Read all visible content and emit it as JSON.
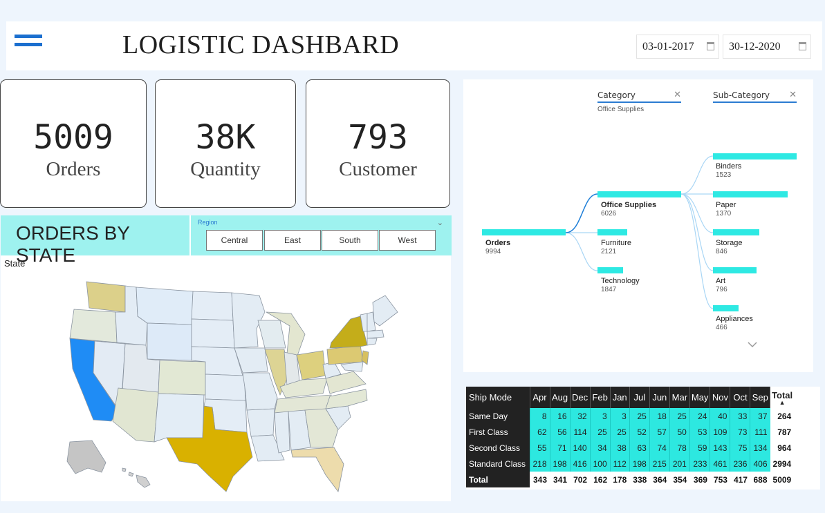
{
  "header": {
    "title": "LOGISTIC DASHBARD",
    "start_date": "03-01-2017",
    "end_date": "30-12-2020"
  },
  "kpis": [
    {
      "value": "5009",
      "label": "Orders"
    },
    {
      "value": "38K",
      "label": "Quantity"
    },
    {
      "value": "793",
      "label": "Customer"
    }
  ],
  "map_section": {
    "title": "ORDERS BY STATE",
    "slicer_label": "Region",
    "regions": [
      "Central",
      "East",
      "South",
      "West"
    ],
    "legend_field": "State"
  },
  "decomposition_tree": {
    "filters": [
      {
        "label": "Category",
        "value": "Office Supplies"
      },
      {
        "label": "Sub-Category",
        "value": ""
      }
    ],
    "bar_color": "#2ee9e3",
    "root": {
      "name": "Orders",
      "value": "9994"
    },
    "categories": [
      {
        "name": "Office Supplies",
        "value": "6026",
        "selected": true
      },
      {
        "name": "Furniture",
        "value": "2121",
        "selected": false
      },
      {
        "name": "Technology",
        "value": "1847",
        "selected": false
      }
    ],
    "subcategories": [
      {
        "name": "Binders",
        "value": "1523"
      },
      {
        "name": "Paper",
        "value": "1370"
      },
      {
        "name": "Storage",
        "value": "846"
      },
      {
        "name": "Art",
        "value": "796"
      },
      {
        "name": "Appliances",
        "value": "466"
      }
    ]
  },
  "matrix": {
    "row_header": "Ship Mode",
    "columns": [
      "Apr",
      "Aug",
      "Dec",
      "Feb",
      "Jan",
      "Jul",
      "Jun",
      "Mar",
      "May",
      "Nov",
      "Oct",
      "Sep"
    ],
    "total_label": "Total",
    "rows": [
      {
        "name": "Same Day",
        "values": [
          "8",
          "16",
          "32",
          "3",
          "3",
          "25",
          "18",
          "25",
          "24",
          "40",
          "33",
          "37"
        ],
        "total": "264"
      },
      {
        "name": "First Class",
        "values": [
          "62",
          "56",
          "114",
          "25",
          "25",
          "52",
          "57",
          "50",
          "53",
          "109",
          "73",
          "111"
        ],
        "total": "787"
      },
      {
        "name": "Second Class",
        "values": [
          "55",
          "71",
          "140",
          "34",
          "38",
          "63",
          "74",
          "78",
          "59",
          "143",
          "75",
          "134"
        ],
        "total": "964"
      },
      {
        "name": "Standard Class",
        "values": [
          "218",
          "198",
          "416",
          "100",
          "112",
          "198",
          "215",
          "201",
          "233",
          "461",
          "236",
          "406"
        ],
        "total": "2994"
      }
    ],
    "totals": {
      "name": "Total",
      "values": [
        "343",
        "341",
        "702",
        "162",
        "178",
        "338",
        "364",
        "354",
        "369",
        "753",
        "417",
        "688"
      ],
      "total": "5009"
    }
  }
}
